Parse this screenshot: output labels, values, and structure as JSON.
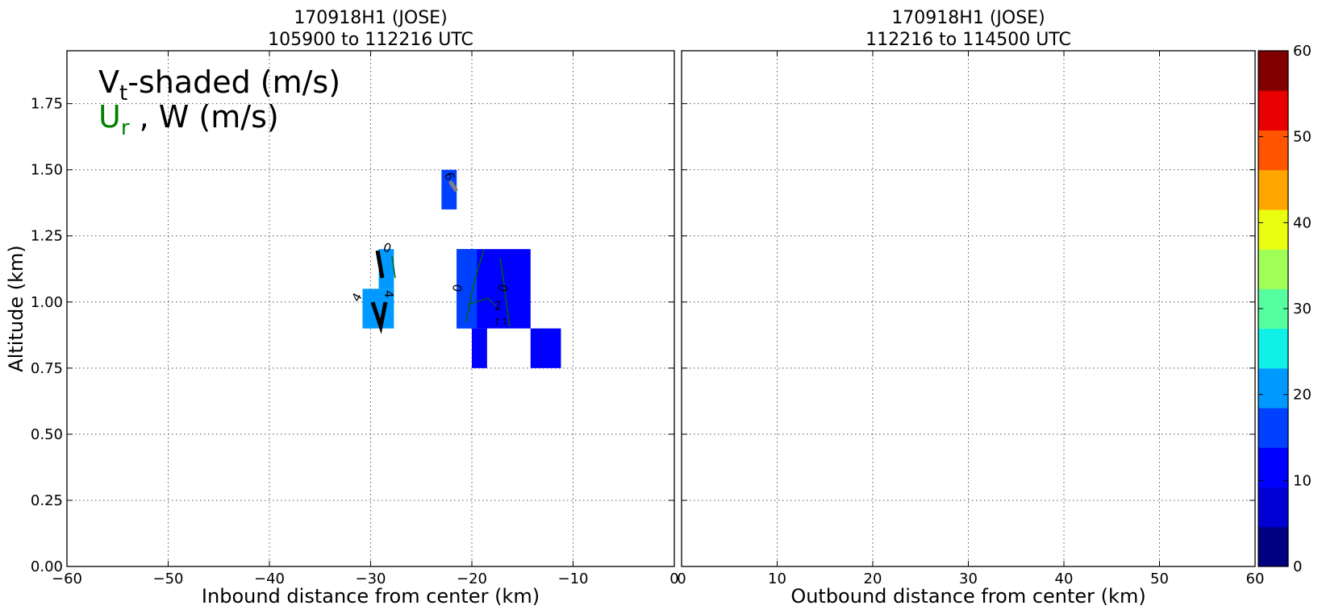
{
  "chart_data": [
    {
      "type": "heatmap",
      "title_line1": "170918H1 (JOSE)",
      "title_line2": "105900 to 112216 UTC",
      "xlabel": "Inbound distance from center (km)",
      "ylabel": "Altitude (km)",
      "xlim": [
        -60,
        0
      ],
      "ylim": [
        0,
        1.95
      ],
      "xticks": [
        -60,
        -50,
        -40,
        -30,
        -20,
        -10,
        0
      ],
      "xtick_labels": [
        "−60",
        "−50",
        "−40",
        "−30",
        "−20",
        "−10",
        "0"
      ],
      "yticks": [
        0.0,
        0.25,
        0.5,
        0.75,
        1.0,
        1.25,
        1.5,
        1.75
      ],
      "ytick_labels": [
        "0.00",
        "0.25",
        "0.50",
        "0.75",
        "1.00",
        "1.25",
        "1.50",
        "1.75"
      ],
      "grid": true,
      "annotation_vt": "V",
      "annotation_vt_sub": "t",
      "annotation_vt_rest": "-shaded (m/s)",
      "annotation_ur": "U",
      "annotation_ur_sub": "r",
      "annotation_w": " , W (m/s)",
      "ur_color": "#008000",
      "cells": [
        {
          "x0": -23.0,
          "x1": -21.5,
          "y0": 1.35,
          "y1": 1.5,
          "value": 17
        },
        {
          "x0": -30.8,
          "x1": -27.7,
          "y0": 0.9,
          "y1": 1.05,
          "value": 22
        },
        {
          "x0": -29.2,
          "x1": -27.7,
          "y0": 1.05,
          "y1": 1.2,
          "value": 22
        },
        {
          "x0": -21.5,
          "x1": -14.2,
          "y0": 0.9,
          "y1": 1.2,
          "value": 12
        },
        {
          "x0": -21.5,
          "x1": -19.5,
          "y0": 0.9,
          "y1": 1.2,
          "value": 17
        },
        {
          "x0": -20.0,
          "x1": -18.5,
          "y0": 0.75,
          "y1": 0.9,
          "value": 12
        },
        {
          "x0": -14.2,
          "x1": -11.2,
          "y0": 0.75,
          "y1": 0.9,
          "value": 12
        }
      ],
      "contour_labels": [
        {
          "text": "6",
          "x": -22.6,
          "y": 1.47,
          "rotate": 70
        },
        {
          "text": "0",
          "x": -28.5,
          "y": 1.19,
          "rotate": 20
        },
        {
          "text": "4",
          "x": -28.6,
          "y": 1.03,
          "rotate": 90
        },
        {
          "text": "4",
          "x": -31.0,
          "y": 1.01,
          "rotate": -60
        },
        {
          "text": "0",
          "x": -21.0,
          "y": 1.05,
          "rotate": -80
        },
        {
          "text": "0",
          "x": -16.5,
          "y": 1.05,
          "rotate": -80
        },
        {
          "text": "2",
          "x": -17.4,
          "y": 0.97,
          "rotate": 0
        }
      ]
    },
    {
      "type": "heatmap",
      "title_line1": "170918H1 (JOSE)",
      "title_line2": "112216 to 114500 UTC",
      "xlabel": "Outbound distance from center (km)",
      "xlim": [
        0,
        60
      ],
      "ylim": [
        0,
        1.95
      ],
      "xticks": [
        0,
        10,
        20,
        30,
        40,
        50,
        60
      ],
      "xtick_labels": [
        "0",
        "10",
        "20",
        "30",
        "40",
        "50",
        "60"
      ],
      "grid": true,
      "cells": []
    }
  ],
  "colorbar": {
    "min": 0,
    "max": 60,
    "ticks": [
      0,
      10,
      20,
      30,
      40,
      50,
      60
    ],
    "tick_labels": [
      "0",
      "10",
      "20",
      "30",
      "40",
      "50",
      "60"
    ],
    "colors": [
      "#000080",
      "#0000d5",
      "#0000ff",
      "#0040ff",
      "#0099ff",
      "#10f0e8",
      "#55ffa0",
      "#a0ff55",
      "#eaff10",
      "#ffa500",
      "#ff5500",
      "#e80000",
      "#800000"
    ]
  }
}
